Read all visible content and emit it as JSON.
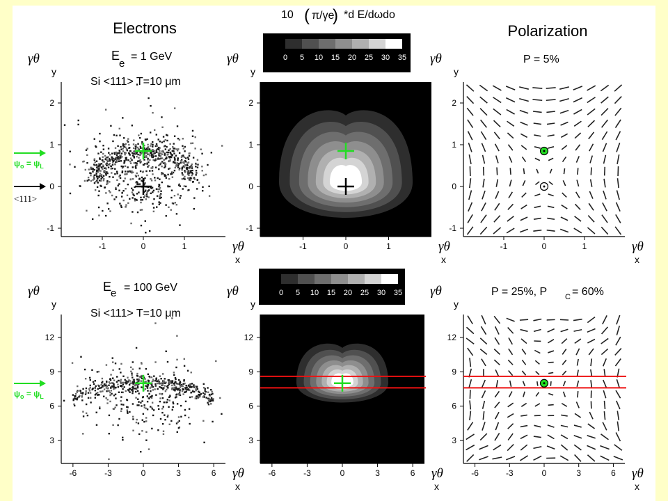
{
  "header": {
    "col1_title": "Electrons",
    "col3_title": "Polarization",
    "top_formula": {
      "prefix": "10",
      "paren_open": "(",
      "paren_body": "π/γe",
      "paren_close": ")",
      "suffix": "*d  E/dωdo"
    }
  },
  "annotations": {
    "electron_energy_top": {
      "base": "E",
      "sub": "e",
      "rest": "= 1 GeV"
    },
    "electron_energy_bottom": {
      "base": "E",
      "sub": "e",
      "rest": "= 100 GeV"
    },
    "crystal": "Si  <111>  T=10  μm",
    "polarization_top": "P = 5%",
    "polarization_bottom": {
      "a": "P = 25%, P",
      "sub": "C",
      "b": "= 60%"
    },
    "psi_label": {
      "base": "ψ",
      "sub0": "o",
      "eq": " = ",
      "base2": "ψ",
      "sub2": "L"
    },
    "axis_111": "<111>"
  },
  "axis_labels": {
    "y_main": "γθ",
    "y_sub": "y",
    "x_main": "γθ",
    "x_sub": "x"
  },
  "colors": {
    "background": "#ffffc8",
    "green": "#22dd22",
    "red": "#ee1111",
    "black": "#000000"
  },
  "chart_data": [
    {
      "id": "electrons_1GeV",
      "type": "scatter",
      "xlim": [
        -2,
        2
      ],
      "ylim": [
        -1.2,
        2.5
      ],
      "x_ticks": [
        "-1",
        "0",
        "1"
      ],
      "y_ticks": [
        "-1",
        "0",
        "1",
        "2"
      ],
      "markers": [
        {
          "kind": "plus",
          "color": "#22dd22",
          "x": 0,
          "y": 0.85
        },
        {
          "kind": "plus",
          "color": "#000000",
          "x": 0,
          "y": 0
        }
      ]
    },
    {
      "id": "intensity_1GeV",
      "type": "heatmap",
      "xlim": [
        -2,
        2
      ],
      "ylim": [
        -1.2,
        2.5
      ],
      "x_ticks": [
        "-1",
        "0",
        "1"
      ],
      "y_ticks": [
        "-1",
        "0",
        "1",
        "2"
      ],
      "colorbar_ticks": [
        "0",
        "5",
        "10",
        "15",
        "20",
        "25",
        "30",
        "35"
      ],
      "markers": [
        {
          "kind": "plus",
          "color": "#22dd22",
          "x": 0,
          "y": 0.85
        },
        {
          "kind": "plus",
          "color": "#000000",
          "x": 0,
          "y": 0
        }
      ]
    },
    {
      "id": "polarization_1GeV",
      "type": "vector_field",
      "xlim": [
        -2,
        2
      ],
      "ylim": [
        -1.2,
        2.5
      ],
      "x_ticks": [
        "-1",
        "0",
        "1"
      ],
      "y_ticks": [
        "-1",
        "0",
        "1",
        "2"
      ],
      "markers": [
        {
          "kind": "green_dot",
          "x": 0,
          "y": 0.85
        },
        {
          "kind": "circled_dot",
          "x": 0,
          "y": 0
        }
      ]
    },
    {
      "id": "electrons_100GeV",
      "type": "scatter",
      "xlim": [
        -7,
        7
      ],
      "ylim": [
        1,
        14
      ],
      "x_ticks": [
        "-6",
        "-3",
        "0",
        "3",
        "6"
      ],
      "y_ticks": [
        "3",
        "6",
        "9",
        "12"
      ],
      "markers": [
        {
          "kind": "plus",
          "color": "#22dd22",
          "x": 0,
          "y": 8
        }
      ]
    },
    {
      "id": "intensity_100GeV",
      "type": "heatmap",
      "xlim": [
        -7,
        7
      ],
      "ylim": [
        1,
        14
      ],
      "x_ticks": [
        "-6",
        "-3",
        "0",
        "3",
        "6"
      ],
      "y_ticks": [
        "3",
        "6",
        "9",
        "12"
      ],
      "colorbar_ticks": [
        "0",
        "5",
        "10",
        "15",
        "20",
        "25",
        "30",
        "35"
      ],
      "hlines": [
        {
          "y": 8.6,
          "color": "#ee1111"
        },
        {
          "y": 7.6,
          "color": "#ee1111"
        }
      ],
      "markers": [
        {
          "kind": "plus",
          "color": "#22dd22",
          "x": 0,
          "y": 8
        }
      ]
    },
    {
      "id": "polarization_100GeV",
      "type": "vector_field",
      "xlim": [
        -7,
        7
      ],
      "ylim": [
        1,
        14
      ],
      "x_ticks": [
        "-6",
        "-3",
        "0",
        "3",
        "6"
      ],
      "y_ticks": [
        "3",
        "6",
        "9",
        "12"
      ],
      "hlines": [
        {
          "y": 8.6,
          "color": "#ee1111"
        },
        {
          "y": 7.6,
          "color": "#ee1111"
        }
      ],
      "markers": [
        {
          "kind": "green_dot",
          "x": 0,
          "y": 8
        }
      ]
    }
  ]
}
